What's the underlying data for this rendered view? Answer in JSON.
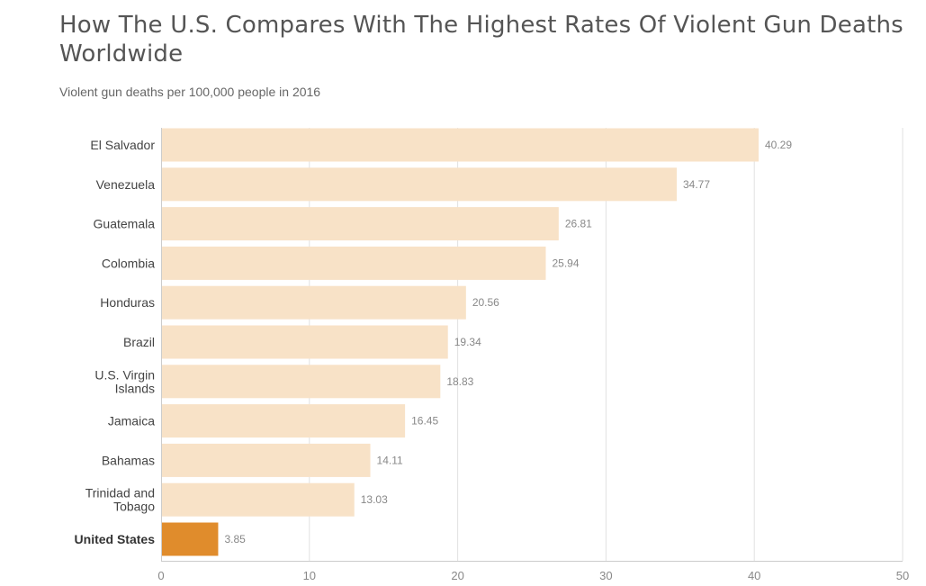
{
  "title": "How The U.S. Compares With The Highest Rates Of Violent Gun Deaths Worldwide",
  "subtitle": "Violent gun deaths per 100,000 people in 2016",
  "colors": {
    "bar": "#f8e2c7",
    "highlight": "#e08c2c"
  },
  "chart_data": {
    "type": "bar",
    "orientation": "horizontal",
    "title": "How The U.S. Compares With The Highest Rates Of Violent Gun Deaths Worldwide",
    "subtitle": "Violent gun deaths per 100,000 people in 2016",
    "xlabel": "",
    "ylabel": "",
    "xlim": [
      0,
      50
    ],
    "ticks": [
      0,
      10,
      20,
      30,
      40,
      50
    ],
    "grid": true,
    "highlight": "United States",
    "categories": [
      [
        "El Salvador"
      ],
      [
        "Venezuela"
      ],
      [
        "Guatemala"
      ],
      [
        "Colombia"
      ],
      [
        "Honduras"
      ],
      [
        "Brazil"
      ],
      [
        "U.S. Virgin",
        "Islands"
      ],
      [
        "Jamaica"
      ],
      [
        "Bahamas"
      ],
      [
        "Trinidad and",
        "Tobago"
      ],
      [
        "United States"
      ]
    ],
    "values": [
      40.29,
      34.77,
      26.81,
      25.94,
      20.56,
      19.34,
      18.83,
      16.45,
      14.11,
      13.03,
      3.85
    ]
  }
}
